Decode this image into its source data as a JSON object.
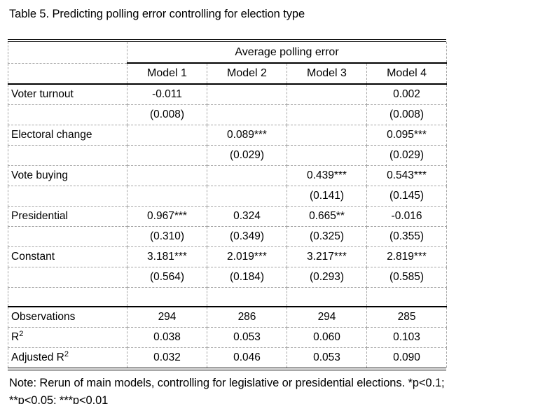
{
  "title": "Table 5. Predicting polling error controlling for election type",
  "colors": {
    "text": "#000000",
    "solid_rule": "#000000",
    "dashed_grid": "#a6a6a6",
    "background": "#ffffff"
  },
  "table": {
    "span_header": "Average polling error",
    "columns": [
      "Model 1",
      "Model 2",
      "Model 3",
      "Model 4"
    ],
    "rows": [
      {
        "label": "Voter turnout",
        "values": [
          "-0.011",
          "",
          "",
          "0.002"
        ]
      },
      {
        "label": "",
        "values": [
          "(0.008)",
          "",
          "",
          "(0.008)"
        ]
      },
      {
        "label": "Electoral change",
        "values": [
          "",
          "0.089***",
          "",
          "0.095***"
        ]
      },
      {
        "label": "",
        "values": [
          "",
          "(0.029)",
          "",
          "(0.029)"
        ]
      },
      {
        "label": "Vote buying",
        "values": [
          "",
          "",
          "0.439***",
          "0.543***"
        ]
      },
      {
        "label": "",
        "values": [
          "",
          "",
          "(0.141)",
          "(0.145)"
        ]
      },
      {
        "label": "Presidential",
        "values": [
          "0.967***",
          "0.324",
          "0.665**",
          "-0.016"
        ]
      },
      {
        "label": "",
        "values": [
          "(0.310)",
          "(0.349)",
          "(0.325)",
          "(0.355)"
        ]
      },
      {
        "label": "Constant",
        "values": [
          "3.181***",
          "2.019***",
          "3.217***",
          "2.819***"
        ]
      },
      {
        "label": "",
        "values": [
          "(0.564)",
          "(0.184)",
          "(0.293)",
          "(0.585)"
        ]
      },
      {
        "label": "",
        "values": [
          "",
          "",
          "",
          ""
        ]
      }
    ],
    "stats": [
      {
        "label": "Observations",
        "label_sup": "",
        "values": [
          "294",
          "286",
          "294",
          "285"
        ]
      },
      {
        "label": "R",
        "label_sup": "2",
        "values": [
          "0.038",
          "0.053",
          "0.060",
          "0.103"
        ]
      },
      {
        "label": "Adjusted R",
        "label_sup": "2",
        "values": [
          "0.032",
          "0.046",
          "0.053",
          "0.090"
        ]
      }
    ]
  },
  "note": {
    "line1": "Note: Rerun of main models, controlling for legislative or presidential elections. *p<0.1;",
    "line2": "**p<0.05; ***p<0.01"
  }
}
